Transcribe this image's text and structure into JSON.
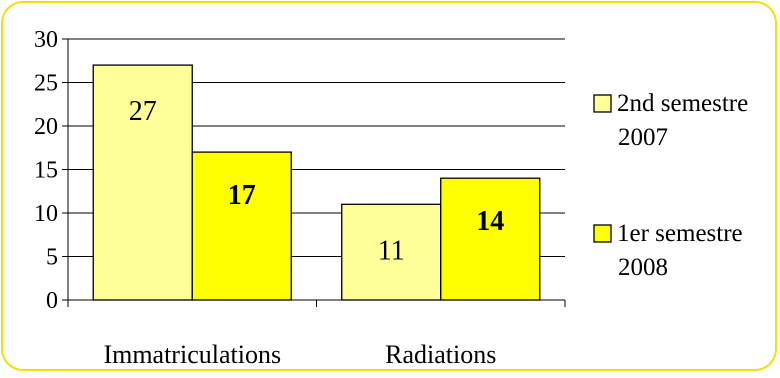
{
  "chart_data": {
    "type": "bar",
    "categories": [
      "Immatriculations",
      "Radiations"
    ],
    "series": [
      {
        "name": "2nd semestre 2007",
        "values": [
          27,
          11
        ],
        "color": "#ffff99",
        "label_bold": false
      },
      {
        "name": "1er semestre 2008",
        "values": [
          17,
          14
        ],
        "color": "#ffff00",
        "label_bold": true
      }
    ],
    "y_ticks": [
      "0",
      "5",
      "10",
      "15",
      "20",
      "25",
      "30"
    ],
    "ylim": [
      0,
      30
    ],
    "grid": true,
    "legend_position": "right",
    "legend_lines": [
      [
        "2nd semestre",
        "2007"
      ],
      [
        "1er semestre",
        "2008"
      ]
    ],
    "colors": {
      "frame_border": "#f2e000",
      "bar_stroke": "#000000",
      "grid": "#000000"
    }
  }
}
